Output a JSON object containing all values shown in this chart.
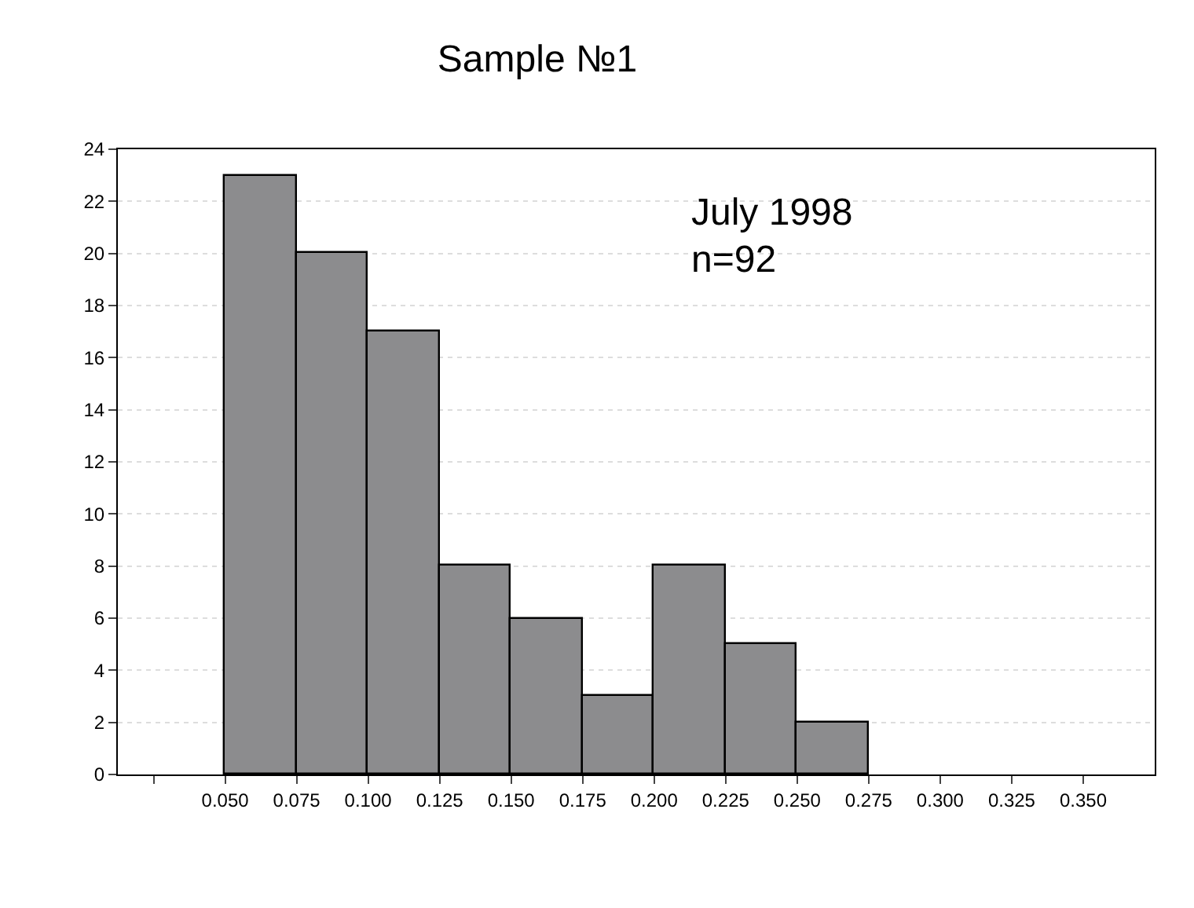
{
  "chart_data": {
    "type": "histogram",
    "title": "Sample №1",
    "bins": [
      0.05,
      0.075,
      0.1,
      0.125,
      0.15,
      0.175,
      0.2,
      0.225,
      0.25,
      0.275
    ],
    "values": [
      23,
      20,
      17,
      8,
      6,
      3,
      8,
      5,
      2
    ],
    "color": "#8c8c8e",
    "xlim": [
      0.0125,
      0.375
    ],
    "xticks": [
      {
        "value": 0.025,
        "label": null
      },
      {
        "value": 0.05,
        "label": "0.050"
      },
      {
        "value": 0.075,
        "label": "0.075"
      },
      {
        "value": 0.1,
        "label": "0.100"
      },
      {
        "value": 0.125,
        "label": "0.125"
      },
      {
        "value": 0.15,
        "label": "0.150"
      },
      {
        "value": 0.175,
        "label": "0.175"
      },
      {
        "value": 0.2,
        "label": "0.200"
      },
      {
        "value": 0.225,
        "label": "0.225"
      },
      {
        "value": 0.25,
        "label": "0.250"
      },
      {
        "value": 0.275,
        "label": "0.275"
      },
      {
        "value": 0.3,
        "label": "0.300"
      },
      {
        "value": 0.325,
        "label": "0.325"
      },
      {
        "value": 0.35,
        "label": "0.350"
      }
    ],
    "ylim": [
      0,
      24
    ],
    "yticks": [
      0,
      2,
      4,
      6,
      8,
      10,
      12,
      14,
      16,
      18,
      20,
      22,
      24
    ],
    "grid": "y",
    "annotations": [
      "July 1998",
      "n=92"
    ]
  }
}
